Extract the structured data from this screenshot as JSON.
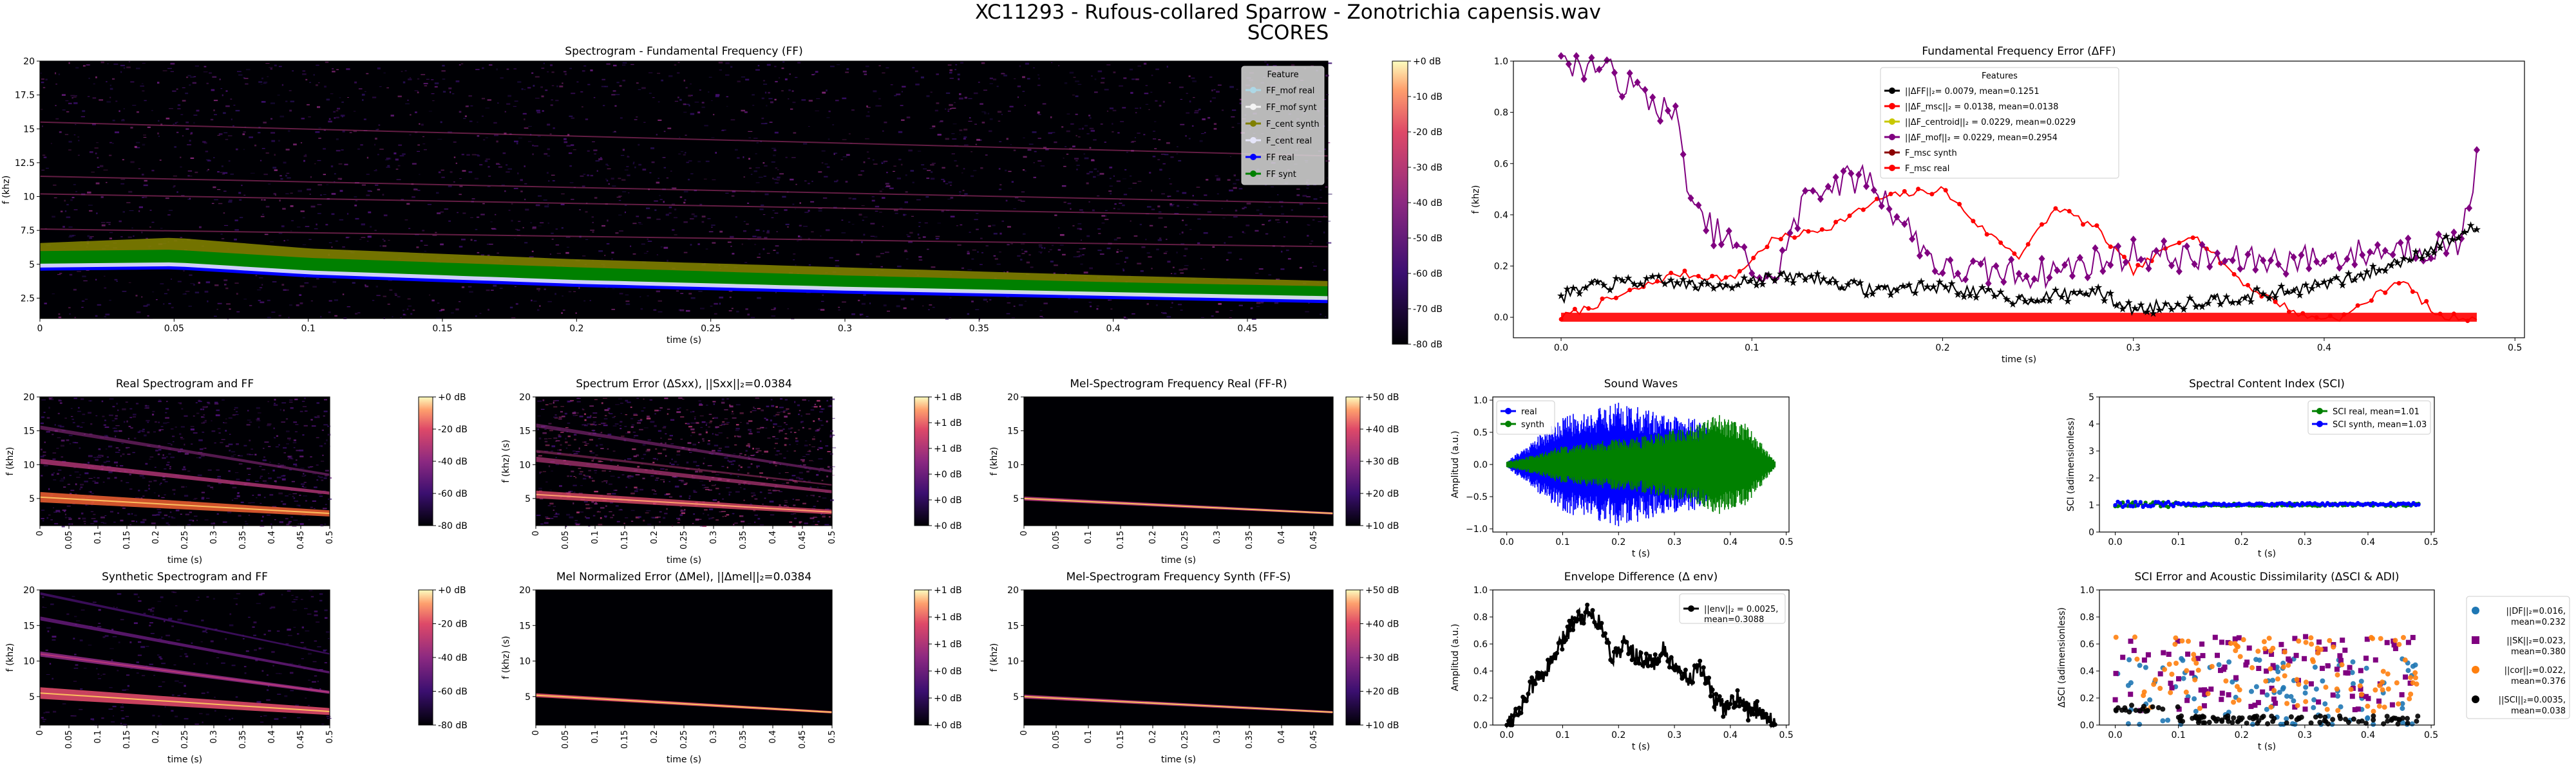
{
  "figure": {
    "title_line1": "XC11293 - Rufous-collared Sparrow - Zonotrichia capensis.wav",
    "title_line2": "SCORES"
  },
  "chart_data": [
    {
      "id": "spectrogram_ff",
      "type": "heatmap",
      "title": "Spectrogram - Fundamental Frequency (FF)",
      "xlabel": "time (s)",
      "ylabel": "f (khz)",
      "xlim": [
        0,
        0.48
      ],
      "ylim": [
        1,
        20
      ],
      "xticks": [
        "0",
        "0.05",
        "0.1",
        "0.15",
        "0.2",
        "0.25",
        "0.3",
        "0.35",
        "0.4",
        "0.45"
      ],
      "yticks": [
        "2.5",
        "5",
        "7.5",
        "10",
        "12.5",
        "15",
        "17.5",
        "20"
      ],
      "colorbar": [
        "+0 dB",
        "-10 dB",
        "-20 dB",
        "-30 dB",
        "-40 dB",
        "-50 dB",
        "-60 dB",
        "-70 dB",
        "-80 dB"
      ],
      "legend": {
        "title": "Feature",
        "position": "top-right",
        "items": [
          {
            "label": "FF_mof real",
            "color": "#add8e6"
          },
          {
            "label": "FF_mof synt",
            "color": "#f5f5f5"
          },
          {
            "label": "F_cent synth",
            "color": "#808000"
          },
          {
            "label": "F_cent real",
            "color": "#e6e6fa"
          },
          {
            "label": "FF real",
            "color": "#0000ff"
          },
          {
            "label": "FF synt",
            "color": "#008000"
          }
        ]
      },
      "series": [
        {
          "name": "F_cent synth",
          "x": [
            0.0,
            0.05,
            0.1,
            0.2,
            0.3,
            0.4,
            0.48
          ],
          "y": [
            6.0,
            6.4,
            5.6,
            4.8,
            4.2,
            3.6,
            3.2
          ]
        },
        {
          "name": "FF real",
          "x": [
            0.0,
            0.05,
            0.1,
            0.2,
            0.3,
            0.4,
            0.48
          ],
          "y": [
            5.1,
            5.2,
            4.6,
            3.9,
            3.4,
            3.0,
            2.7
          ]
        },
        {
          "name": "FF synt",
          "x": [
            0.0,
            0.05,
            0.1,
            0.2,
            0.3,
            0.4,
            0.48
          ],
          "y": [
            5.5,
            5.6,
            5.0,
            4.3,
            3.7,
            3.2,
            2.9
          ]
        }
      ]
    },
    {
      "id": "ff_error",
      "type": "line",
      "title": "Fundamental Frequency Error (ΔFF)",
      "xlabel": "time (s)",
      "ylabel": "f (khz)",
      "xlim": [
        -0.025,
        0.505
      ],
      "ylim": [
        -0.08,
        1.0
      ],
      "xticks": [
        "0.0",
        "0.1",
        "0.2",
        "0.3",
        "0.4",
        "0.5"
      ],
      "yticks": [
        "0.0",
        "0.2",
        "0.4",
        "0.6",
        "0.8",
        "1.0"
      ],
      "legend": {
        "title": "Features",
        "position": "upper-center",
        "items": [
          {
            "label": "||ΔFF||₂= 0.0079, mean=0.1251",
            "color": "#000000"
          },
          {
            "label": "||ΔF_msc||₂ = 0.0138, mean=0.0138",
            "color": "#ff0000"
          },
          {
            "label": "||ΔF_centroid||₂ = 0.0229, mean=0.0229",
            "color": "#c8c800"
          },
          {
            "label": "||ΔF_mof||₂ = 0.0229, mean=0.2954",
            "color": "#800080"
          },
          {
            "label": "F_msc synth",
            "color": "#8b0000"
          },
          {
            "label": "F_msc real",
            "color": "#ff0000"
          }
        ]
      },
      "series": [
        {
          "name": "ΔFF",
          "x": [
            0.0,
            0.02,
            0.05,
            0.08,
            0.1,
            0.13,
            0.16,
            0.2,
            0.24,
            0.28,
            0.3,
            0.34,
            0.38,
            0.42,
            0.45,
            0.48
          ],
          "y": [
            0.08,
            0.13,
            0.14,
            0.12,
            0.15,
            0.16,
            0.11,
            0.12,
            0.07,
            0.1,
            0.03,
            0.07,
            0.1,
            0.16,
            0.25,
            0.35
          ]
        },
        {
          "name": "ΔF_msc",
          "x": [
            0.0,
            0.03,
            0.06,
            0.09,
            0.11,
            0.14,
            0.17,
            0.2,
            0.22,
            0.24,
            0.26,
            0.28,
            0.3,
            0.33,
            0.36,
            0.39,
            0.41,
            0.44,
            0.46,
            0.48
          ],
          "y": [
            0.0,
            0.08,
            0.17,
            0.15,
            0.3,
            0.35,
            0.47,
            0.5,
            0.35,
            0.24,
            0.43,
            0.35,
            0.18,
            0.33,
            0.12,
            0.0,
            0.0,
            0.15,
            0.0,
            0.0
          ]
        },
        {
          "name": "ΔF_mof",
          "x": [
            0.0,
            0.02,
            0.04,
            0.06,
            0.07,
            0.09,
            0.11,
            0.13,
            0.16,
            0.2,
            0.25,
            0.3,
            0.35,
            0.4,
            0.44,
            0.47,
            0.48
          ],
          "y": [
            1.0,
            0.98,
            0.88,
            0.78,
            0.4,
            0.28,
            0.12,
            0.5,
            0.55,
            0.18,
            0.17,
            0.25,
            0.22,
            0.23,
            0.27,
            0.28,
            0.6
          ]
        },
        {
          "name": "F_msc real",
          "x": [
            0.0,
            0.48
          ],
          "y": [
            0.0,
            0.0
          ]
        }
      ]
    },
    {
      "id": "real_spectrogram",
      "type": "heatmap",
      "title": "Real Spectrogram and FF",
      "xlabel": "time (s)",
      "ylabel": "f (khz)",
      "ylim": [
        1,
        20
      ],
      "xticks": [
        "0",
        "0.05",
        "0.1",
        "0.15",
        "0.2",
        "0.25",
        "0.3",
        "0.35",
        "0.4",
        "0.45",
        "0.5"
      ],
      "yticks": [
        "5",
        "10",
        "15",
        "20"
      ],
      "colorbar": [
        "+0 dB",
        "-20 dB",
        "-40 dB",
        "-60 dB",
        "-80 dB"
      ]
    },
    {
      "id": "spectrum_error",
      "type": "heatmap",
      "title": "Spectrum Error (ΔSxx), ||Sxx||₂=0.0384",
      "xlabel": "time (s)",
      "ylabel": "f (khz) (s)",
      "ylim": [
        1,
        20
      ],
      "xticks": [
        "0",
        "0.05",
        "0.1",
        "0.15",
        "0.2",
        "0.25",
        "0.3",
        "0.35",
        "0.4",
        "0.45",
        "0.5"
      ],
      "yticks": [
        "5",
        "10",
        "15",
        "20"
      ],
      "colorbar": [
        "+1 dB",
        "+1 dB",
        "+1 dB",
        "+0 dB",
        "+0 dB",
        "+0 dB"
      ]
    },
    {
      "id": "mel_real",
      "type": "heatmap",
      "title": "Mel-Spectrogram Frequency Real (FF-R)",
      "xlabel": "time (s)",
      "ylabel": "f (khz)",
      "ylim": [
        1,
        20
      ],
      "xticks": [
        "0",
        "0.05",
        "0.1",
        "0.15",
        "0.2",
        "0.25",
        "0.3",
        "0.35",
        "0.4",
        "0.45"
      ],
      "yticks": [
        "5",
        "10",
        "15",
        "20"
      ],
      "colorbar": [
        "+50 dB",
        "+40 dB",
        "+30 dB",
        "+20 dB",
        "+10 dB"
      ]
    },
    {
      "id": "sound_waves",
      "type": "area",
      "title": "Sound Waves",
      "xlabel": "t (s)",
      "ylabel": "Amplitud (a.u.)",
      "xlim": [
        -0.025,
        0.505
      ],
      "ylim": [
        -1.05,
        1.05
      ],
      "xticks": [
        "0.0",
        "0.1",
        "0.2",
        "0.3",
        "0.4",
        "0.5"
      ],
      "yticks": [
        "−1.0",
        "−0.5",
        "0.0",
        "0.5",
        "1.0"
      ],
      "legend": {
        "position": "top-left",
        "items": [
          {
            "label": "real",
            "color": "#0000ff"
          },
          {
            "label": "synth",
            "color": "#008000"
          }
        ]
      },
      "series": [
        {
          "name": "real",
          "x": [
            0.0,
            0.05,
            0.1,
            0.15,
            0.2,
            0.25,
            0.3,
            0.35,
            0.4,
            0.45,
            0.48
          ],
          "y": [
            0.05,
            0.4,
            0.75,
            0.85,
            0.98,
            0.85,
            0.75,
            0.7,
            0.25,
            0.1,
            0.0
          ]
        },
        {
          "name": "synth",
          "x": [
            0.0,
            0.05,
            0.1,
            0.15,
            0.2,
            0.25,
            0.3,
            0.35,
            0.38,
            0.42,
            0.45,
            0.48
          ],
          "y": [
            0.05,
            0.15,
            0.3,
            0.35,
            0.4,
            0.45,
            0.55,
            0.65,
            0.8,
            0.7,
            0.4,
            0.05
          ]
        }
      ]
    },
    {
      "id": "sci",
      "type": "scatter",
      "title": "Spectral Content Index (SCI)",
      "xlabel": "t (s)",
      "ylabel": "SCI (adimensionless)",
      "xlim": [
        -0.025,
        0.505
      ],
      "ylim": [
        0,
        5
      ],
      "xticks": [
        "0.0",
        "0.1",
        "0.2",
        "0.3",
        "0.4",
        "0.5"
      ],
      "yticks": [
        "0",
        "1",
        "2",
        "3",
        "4",
        "5"
      ],
      "legend": {
        "position": "top-right",
        "items": [
          {
            "label": "SCI real,   mean=1.01",
            "color": "#008000"
          },
          {
            "label": "SCI synth, mean=1.03",
            "color": "#0000ff"
          }
        ]
      },
      "series": [
        {
          "name": "SCI real",
          "x": [
            0.0,
            0.48
          ],
          "y": [
            1.01,
            1.01
          ]
        },
        {
          "name": "SCI synth",
          "x": [
            0.0,
            0.48
          ],
          "y": [
            1.03,
            1.03
          ]
        }
      ]
    },
    {
      "id": "synthetic_spectrogram",
      "type": "heatmap",
      "title": "Synthetic Spectrogram and FF",
      "xlabel": "time (s)",
      "ylabel": "f (khz)",
      "ylim": [
        1,
        20
      ],
      "xticks": [
        "0",
        "0.05",
        "0.1",
        "0.15",
        "0.2",
        "0.25",
        "0.3",
        "0.35",
        "0.4",
        "0.45",
        "0.5"
      ],
      "yticks": [
        "5",
        "10",
        "15",
        "20"
      ],
      "colorbar": [
        "+0 dB",
        "-20 dB",
        "-40 dB",
        "-60 dB",
        "-80 dB"
      ]
    },
    {
      "id": "mel_error",
      "type": "heatmap",
      "title": "Mel Normalized Error (ΔMel), ||Δmel||₂=0.0384",
      "xlabel": "time (s)",
      "ylabel": "f (khz) (s)",
      "ylim": [
        1,
        20
      ],
      "xticks": [
        "0",
        "0.05",
        "0.1",
        "0.15",
        "0.2",
        "0.25",
        "0.3",
        "0.35",
        "0.4",
        "0.45",
        "0.5"
      ],
      "yticks": [
        "5",
        "10",
        "15",
        "20"
      ],
      "colorbar": [
        "+1 dB",
        "+1 dB",
        "+1 dB",
        "+0 dB",
        "+0 dB",
        "+0 dB"
      ]
    },
    {
      "id": "mel_synth",
      "type": "heatmap",
      "title": "Mel-Spectrogram Frequency Synth (FF-S)",
      "xlabel": "time (s)",
      "ylabel": "f (khz)",
      "ylim": [
        1,
        20
      ],
      "xticks": [
        "0",
        "0.05",
        "0.1",
        "0.15",
        "0.2",
        "0.25",
        "0.3",
        "0.35",
        "0.4",
        "0.45"
      ],
      "yticks": [
        "5",
        "10",
        "15",
        "20"
      ],
      "colorbar": [
        "+50 dB",
        "+40 dB",
        "+30 dB",
        "+20 dB",
        "+10 dB"
      ]
    },
    {
      "id": "envelope_diff",
      "type": "line",
      "title": "Envelope Difference (Δ env)",
      "xlabel": "t (s)",
      "ylabel": "Amplitud (a.u.)",
      "xlim": [
        -0.025,
        0.505
      ],
      "ylim": [
        0,
        1.0
      ],
      "xticks": [
        "0.0",
        "0.1",
        "0.2",
        "0.3",
        "0.4",
        "0.5"
      ],
      "yticks": [
        "0.0",
        "0.2",
        "0.4",
        "0.6",
        "0.8",
        "1.0"
      ],
      "legend": {
        "position": "top-right",
        "items": [
          {
            "label": "||env||₂ = 0.0025,\nmean=0.3088",
            "color": "#000000"
          }
        ]
      },
      "series": [
        {
          "name": "Δ env",
          "x": [
            0.0,
            0.02,
            0.05,
            0.08,
            0.1,
            0.12,
            0.15,
            0.17,
            0.19,
            0.21,
            0.23,
            0.26,
            0.28,
            0.3,
            0.33,
            0.35,
            0.37,
            0.39,
            0.41,
            0.43,
            0.45,
            0.47,
            0.48
          ],
          "y": [
            0.02,
            0.1,
            0.32,
            0.45,
            0.62,
            0.78,
            0.85,
            0.72,
            0.5,
            0.6,
            0.52,
            0.45,
            0.55,
            0.4,
            0.35,
            0.42,
            0.18,
            0.12,
            0.2,
            0.1,
            0.12,
            0.05,
            0.02
          ]
        }
      ]
    },
    {
      "id": "sci_error_adi",
      "type": "scatter",
      "title": "SCI Error and Acoustic Dissimilarity (ΔSCI & ADI)",
      "xlabel": "t (s)",
      "ylabel": "ΔSCI (adimensionless)",
      "xlim": [
        -0.025,
        0.505
      ],
      "ylim": [
        0,
        1.0
      ],
      "xticks": [
        "0.0",
        "0.1",
        "0.2",
        "0.3",
        "0.4",
        "0.5"
      ],
      "yticks": [
        "0.0",
        "0.2",
        "0.4",
        "0.6",
        "0.8",
        "1.0"
      ],
      "legend": {
        "position": "outside-right",
        "items": [
          {
            "label": "||DF||₂=0.016,\nmean=0.232",
            "color": "#1f77b4"
          },
          {
            "label": "||SK||₂=0.023,\nmean=0.380",
            "color": "#800080"
          },
          {
            "label": "||cor||₂=0.022,\nmean=0.376",
            "color": "#ff7f0e"
          },
          {
            "label": "||SCI||₂=0.0035,\nmean=0.038",
            "color": "#000000"
          }
        ]
      },
      "series": [
        {
          "name": "DF",
          "mean": 0.232
        },
        {
          "name": "SK",
          "mean": 0.38
        },
        {
          "name": "cor",
          "mean": 0.376
        },
        {
          "name": "SCI",
          "mean": 0.038
        }
      ]
    }
  ]
}
